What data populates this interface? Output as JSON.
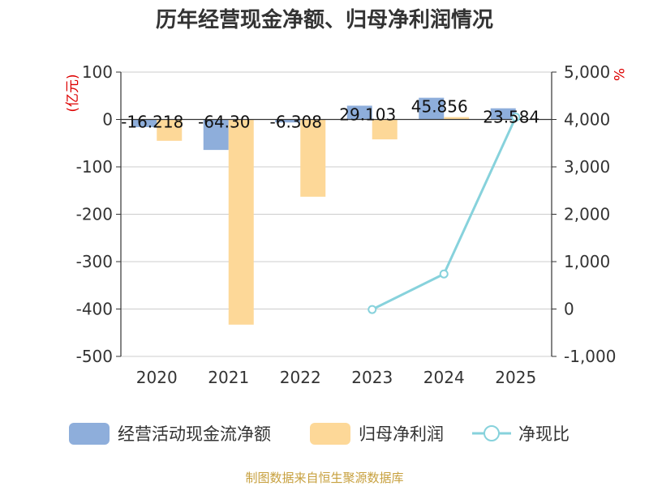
{
  "chart_data": {
    "type": "bar",
    "title": "历年经营现金净额、归母净利润情况",
    "categories": [
      "2020",
      "2021",
      "2022",
      "2023",
      "2024",
      "2025"
    ],
    "series": [
      {
        "name": "经营活动现金流净额",
        "type": "bar",
        "axis": "left",
        "color": "#8eaedb",
        "values": [
          -16.218,
          -64.3,
          -6.308,
          29.103,
          45.856,
          23.584
        ],
        "labels": [
          "-16.218",
          "-64.30",
          "-6.308",
          "29.103",
          "45.856",
          "23.584"
        ]
      },
      {
        "name": "归母净利润",
        "type": "bar",
        "axis": "left",
        "color": "#fdd898",
        "values": [
          -45,
          -433,
          -163,
          -42,
          5,
          0
        ]
      },
      {
        "name": "净现比",
        "type": "line",
        "axis": "right",
        "color": "#87d2dc",
        "values": [
          null,
          null,
          null,
          -10,
          740,
          4050
        ]
      }
    ],
    "left_axis": {
      "unit_label": "(亿元)",
      "ylim": [
        -500,
        100
      ],
      "ticks": [
        100,
        0,
        -100,
        -200,
        -300,
        -400,
        -500
      ],
      "tick_labels": [
        "100",
        "0",
        "-100",
        "-200",
        "-300",
        "-400",
        "-500"
      ]
    },
    "right_axis": {
      "unit_label": "%",
      "ylim": [
        -1000,
        5000
      ],
      "ticks": [
        5000,
        4000,
        3000,
        2000,
        1000,
        0,
        -1000
      ],
      "tick_labels": [
        "5,000",
        "4,000",
        "3,000",
        "2,000",
        "1,000",
        "0",
        "-1,000"
      ]
    },
    "grid": true,
    "legend_position": "bottom",
    "source": "制图数据来自恒生聚源数据库"
  },
  "colors": {
    "axis": "#333333",
    "grid": "#cccccc",
    "title": "#333333",
    "unit_label": "#dd0000",
    "source": "#c7a03e"
  }
}
